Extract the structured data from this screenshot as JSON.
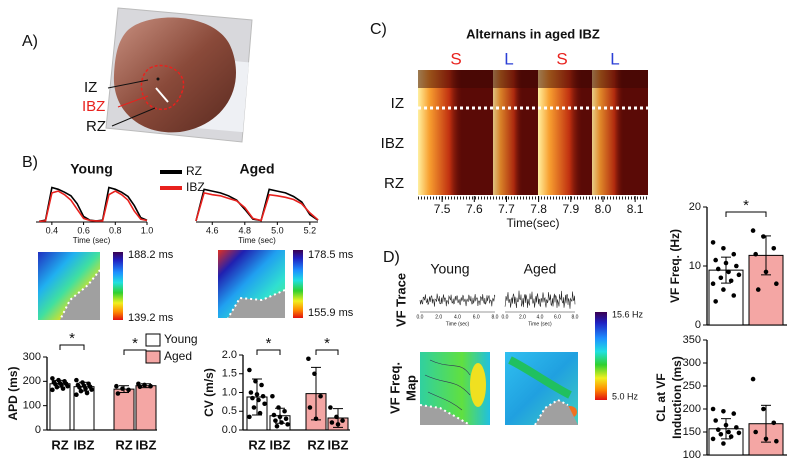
{
  "panel_labels": [
    "A)",
    "B)",
    "C)",
    "D)"
  ],
  "panel_a": {
    "labels": [
      "IZ",
      "IBZ",
      "RZ"
    ]
  },
  "apd_maps": [
    {
      "max": "188.2 ms",
      "min": "139.2 ms"
    },
    {
      "max": "178.5 ms",
      "min": "155.9 ms"
    }
  ],
  "panel_d": {
    "columns": [
      "Young",
      "Aged"
    ],
    "row_labels": [
      "VF Trace",
      "VF Freq.",
      "Map"
    ],
    "trace_ticks": [
      "0.0",
      "2.0",
      "4.0",
      "6.0",
      "8.0"
    ],
    "trace_xlabel": "Time (sec)",
    "colorbar": {
      "max": "15.6 Hz",
      "min": "5.0 Hz"
    }
  },
  "chart_data": [
    {
      "type": "line",
      "title": "Young",
      "x": [
        0.32,
        0.36,
        0.4,
        0.44,
        0.48,
        0.52,
        0.56,
        0.6,
        0.64,
        0.68,
        0.72,
        0.76,
        0.8,
        0.84,
        0.88,
        0.92,
        0.96,
        1.0
      ],
      "xlim": [
        0.3,
        1.0
      ],
      "xticks": [
        0.4,
        0.6,
        0.8,
        {
          "value": 1,
          "label": "1.0"
        }
      ],
      "xlabel": "Time (sec)",
      "ylim": [
        0,
        1.1
      ],
      "series": [
        {
          "name": "RZ",
          "color": "#000000",
          "values": [
            0.02,
            0.05,
            0.95,
            0.9,
            0.82,
            0.72,
            0.5,
            0.15,
            0.05,
            0.03,
            0.05,
            0.95,
            0.9,
            0.82,
            0.7,
            0.45,
            0.12,
            0.05
          ]
        },
        {
          "name": "IBZ",
          "color": "#e8211d",
          "values": [
            0.02,
            0.03,
            0.8,
            0.85,
            0.75,
            0.6,
            0.35,
            0.1,
            0.04,
            0.03,
            0.03,
            0.75,
            0.85,
            0.75,
            0.6,
            0.3,
            0.08,
            0.04
          ]
        }
      ]
    },
    {
      "type": "line",
      "title": "Aged",
      "x": [
        4.5,
        4.55,
        4.6,
        4.65,
        4.7,
        4.75,
        4.8,
        4.85,
        4.9,
        4.95,
        5.0,
        5.05,
        5.1,
        5.15,
        5.2,
        5.25
      ],
      "xlim": [
        4.5,
        5.25
      ],
      "xticks": [
        4.6,
        4.8,
        {
          "value": 5,
          "label": "5.0"
        },
        5.2
      ],
      "xlabel": "Time (sec)",
      "ylim": [
        0,
        1.1
      ],
      "series": [
        {
          "color": "#000000",
          "values": [
            0.03,
            0.9,
            0.85,
            0.8,
            0.72,
            0.6,
            0.35,
            0.08,
            0.04,
            0.9,
            0.85,
            0.8,
            0.7,
            0.55,
            0.2,
            0.05
          ]
        },
        {
          "color": "#e8211d",
          "values": [
            0.03,
            0.8,
            0.75,
            0.72,
            0.65,
            0.58,
            0.4,
            0.1,
            0.04,
            0.75,
            0.72,
            0.68,
            0.62,
            0.5,
            0.25,
            0.06
          ]
        }
      ]
    },
    {
      "type": "bar",
      "ylabel": "APD (ms)",
      "categories": [
        "RZ",
        "IBZ",
        "RZ",
        "IBZ"
      ],
      "ylim": [
        0,
        300
      ],
      "yticks": [
        0,
        100,
        200,
        300
      ],
      "annotations": [
        "*",
        "*"
      ],
      "series": [
        {
          "name": "Young",
          "color": "#ffffff",
          "values": [
            190,
            178,
            null,
            null
          ],
          "errors": [
            14,
            18,
            null,
            null
          ],
          "points": [
            [
              212,
              205,
              200,
              196,
              192,
              190,
              188,
              185,
              180,
              176,
              170,
              165
            ],
            [
              205,
              195,
              190,
              185,
              182,
              178,
              175,
              170,
              166,
              160,
              152,
              145
            ],
            null,
            null
          ]
        },
        {
          "name": "Aged",
          "color": "#f4a6a4",
          "values": [
            null,
            null,
            168,
            182
          ],
          "errors": [
            null,
            null,
            14,
            8
          ],
          "points": [
            null,
            null,
            [
              180,
              170,
              165,
              150
            ],
            [
              190,
              185,
              180,
              178
            ]
          ]
        }
      ]
    },
    {
      "type": "bar",
      "ylabel": "CV (m/s)",
      "categories": [
        "RZ",
        "IBZ",
        "RZ",
        "IBZ"
      ],
      "ylim": [
        0,
        2
      ],
      "yticks": [
        {
          "value": 0,
          "label": "0.0"
        },
        0.5,
        {
          "value": 1,
          "label": "1.0"
        },
        1.5,
        {
          "value": 2,
          "label": "2.0"
        }
      ],
      "annotations": [
        "*",
        "*"
      ],
      "series": [
        {
          "color": "#ffffff",
          "values": [
            0.88,
            0.38,
            null,
            null
          ],
          "errors": [
            0.48,
            0.2,
            null,
            null
          ],
          "points": [
            [
              1.6,
              1.3,
              1.2,
              1.0,
              0.95,
              0.9,
              0.85,
              0.8,
              0.7,
              0.6,
              0.45,
              0.35
            ],
            [
              0.9,
              0.6,
              0.5,
              0.4,
              0.35,
              0.3,
              0.25,
              0.2,
              0.15,
              0.1
            ],
            null,
            null
          ]
        },
        {
          "color": "#f4a6a4",
          "values": [
            null,
            null,
            0.97,
            0.32
          ],
          "errors": [
            null,
            null,
            0.7,
            0.25
          ],
          "points": [
            null,
            null,
            [
              1.9,
              1.5,
              0.9,
              0.6,
              0.3
            ],
            [
              0.6,
              0.35,
              0.25,
              0.2,
              0.15
            ]
          ]
        }
      ]
    },
    {
      "type": "heatmap",
      "title": "Alternans in aged IBZ",
      "beats": [
        {
          "label": "S",
          "color": "#e8211d"
        },
        {
          "label": "L",
          "color": "#2b3fd6"
        },
        {
          "label": "S",
          "color": "#e8211d"
        },
        {
          "label": "L",
          "color": "#2b3fd6"
        }
      ],
      "rows": [
        "IZ",
        "IBZ",
        "RZ"
      ],
      "xlim": [
        7.425,
        8.14
      ],
      "xticks": [
        7.5,
        7.6,
        7.7,
        7.8,
        7.9,
        {
          "value": 8,
          "label": "8.0"
        },
        8.1
      ],
      "xlabel": "Time(sec)"
    },
    {
      "type": "bar",
      "ylabel": "VF Freq. (Hz)",
      "categories": [
        null,
        null
      ],
      "ylim": [
        0,
        20
      ],
      "yticks": [
        0,
        10,
        20
      ],
      "annotations": [
        "*"
      ],
      "series": [
        {
          "color": "#ffffff",
          "values": [
            9.3,
            null
          ],
          "errors": [
            2.2,
            null
          ],
          "points": [
            [
              14,
              13,
              12,
              11,
              10.5,
              10,
              9.5,
              9,
              8.5,
              8,
              7.5,
              7,
              6,
              5,
              4
            ],
            null
          ]
        },
        {
          "color": "#f4a6a4",
          "values": [
            null,
            11.8
          ],
          "errors": [
            null,
            3.3
          ],
          "points": [
            null,
            [
              16,
              15,
              13,
              12,
              9,
              7,
              6
            ]
          ]
        }
      ]
    },
    {
      "type": "bar",
      "ylabel": [
        "CL at VF",
        "Induction (ms)"
      ],
      "categories": [
        null,
        null
      ],
      "ylim": [
        100,
        350
      ],
      "yticks": [
        100,
        150,
        200,
        250,
        300,
        350
      ],
      "series": [
        {
          "color": "#ffffff",
          "values": [
            157,
            null
          ],
          "errors": [
            22,
            null
          ],
          "points": [
            [
              200,
              195,
              190,
              175,
              165,
              160,
              155,
              150,
              148,
              145,
              140,
              135,
              125
            ],
            null
          ]
        },
        {
          "color": "#f4a6a4",
          "values": [
            null,
            168
          ],
          "errors": [
            null,
            40
          ],
          "points": [
            null,
            [
              265,
              200,
              170,
              150,
              135,
              130
            ]
          ]
        }
      ]
    }
  ]
}
